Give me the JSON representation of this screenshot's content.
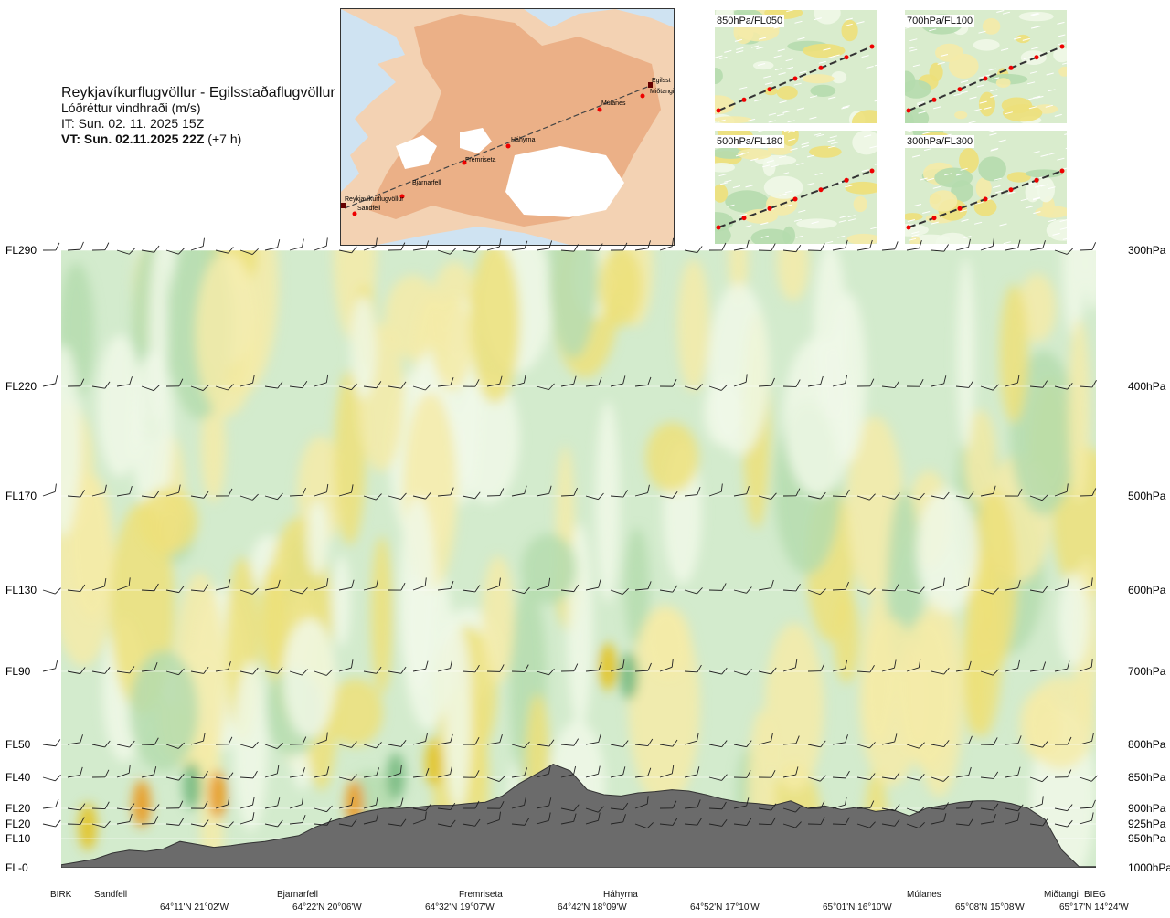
{
  "header": {
    "title": "Reykjavíkurflugvöllur - Egilsstaðaflugvöllur",
    "subtitle": "Lóðréttur vindhraði (m/s)",
    "issue_time": "IT: Sun. 02. 11. 2025 15Z",
    "valid_time": "VT: Sun. 02.11.2025 22Z",
    "valid_offset": " (+7 h)"
  },
  "map": {
    "labels": [
      "Reykjavíkurflugvöllur",
      "Sandfell",
      "Bjarnarfell",
      "Fremriseta",
      "Háhyrna",
      "Múlanes",
      "Miðtangi",
      "Egilsst"
    ]
  },
  "thumbnails": [
    {
      "label": "850hPa/FL050"
    },
    {
      "label": "700hPa/FL100"
    },
    {
      "label": "500hPa/FL180"
    },
    {
      "label": "300hPa/FL300"
    }
  ],
  "colors": {
    "terrain": "#6b6b6b",
    "green_light": "#d3ebcd",
    "green_mid": "#b5dcae",
    "green_dark": "#7fbe86",
    "yellow_light": "#f4eba8",
    "yellow_mid": "#ede07a",
    "yellow_dark": "#e2c632",
    "orange": "#e7a02f",
    "pale": "#f0f8e8"
  },
  "chart_data": {
    "type": "heatmap",
    "title": "Lóðréttur vindhraði (m/s)",
    "y_left_labels": [
      "FL290",
      "FL220",
      "FL170",
      "FL130",
      "FL90",
      "FL50",
      "FL40",
      "FL20",
      "FL20",
      "FL10",
      "FL-0"
    ],
    "y_right_labels": [
      "300hPa",
      "400hPa",
      "500hPa",
      "600hPa",
      "700hPa",
      "800hPa",
      "850hPa",
      "900hPa",
      "925hPa",
      "950hPa",
      "1000hPa"
    ],
    "pressure_levels": [
      300,
      400,
      500,
      600,
      700,
      800,
      850,
      900,
      925,
      950,
      1000
    ],
    "x_locations": [
      "BIRK",
      "Sandfell",
      "Bjarnarfell",
      "Fremriseta",
      "Háhyrna",
      "Múlanes",
      "Miðtangi",
      "BIEG"
    ],
    "x_coordinates": [
      "64°11'N 21°02'W",
      "64°22'N 20°06'W",
      "64°32'N 19°07'W",
      "64°42'N 18°09'W",
      "64°52'N 17°10'W",
      "65°01'N 16°10'W",
      "65°08'N 15°08'W",
      "65°17'N 14°24'W"
    ],
    "terrain_profile_hpa": [
      995,
      990,
      985,
      975,
      970,
      972,
      968,
      955,
      960,
      965,
      962,
      958,
      955,
      950,
      945,
      930,
      920,
      912,
      905,
      900,
      900,
      898,
      895,
      895,
      892,
      890,
      880,
      860,
      845,
      830,
      840,
      870,
      878,
      880,
      875,
      873,
      870,
      872,
      878,
      885,
      890,
      892,
      895,
      888,
      900,
      896,
      902,
      898,
      905,
      902,
      912,
      900,
      895,
      890,
      888,
      888,
      892,
      900,
      918,
      970,
      998,
      998
    ]
  }
}
